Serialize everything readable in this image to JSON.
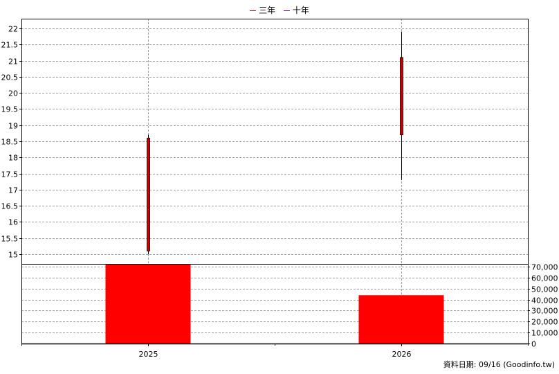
{
  "legend": [
    {
      "label": "三年",
      "color": "#cc0000"
    },
    {
      "label": "十年",
      "color": "#6600cc"
    }
  ],
  "footer": {
    "text": "資料日期: 09/16  (Goodinfo.tw)"
  },
  "chart_data": {
    "type": "candlestick+bar",
    "categories": [
      "2025",
      "2026"
    ],
    "price": {
      "ylim": [
        14.7,
        22.3
      ],
      "ticks": [
        15,
        15.5,
        16,
        16.5,
        17,
        17.5,
        18,
        18.5,
        19,
        19.5,
        20,
        20.5,
        21,
        21.5,
        22
      ],
      "candles": [
        {
          "x": "2025",
          "open": 15.1,
          "close": 18.6,
          "low": 15.0,
          "high": 18.7,
          "color": "#cc0000"
        },
        {
          "x": "2026",
          "open": 18.7,
          "close": 21.1,
          "low": 17.3,
          "high": 21.9,
          "color": "#cc0000"
        }
      ]
    },
    "volume": {
      "ylim": [
        0,
        70000
      ],
      "ticks": [
        0,
        10000,
        20000,
        30000,
        40000,
        50000,
        60000,
        70000
      ],
      "tick_labels": [
        "0",
        "10,000",
        "20,000",
        "30,000",
        "40,000",
        "50,000",
        "60,000",
        "70,000"
      ],
      "values": [
        72000,
        44000
      ],
      "color": "#ff0000"
    },
    "grid": true
  }
}
